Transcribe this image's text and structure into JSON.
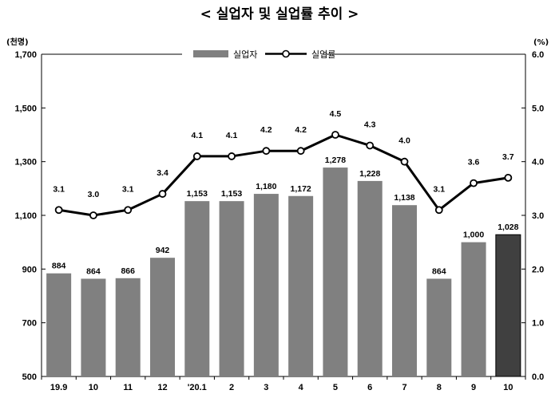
{
  "chart_data": {
    "type": "bar",
    "title": "< 실업자 및 실업률 추이 >",
    "left_unit": "(천명)",
    "right_unit": "(%)",
    "categories": [
      "19.9",
      "10",
      "11",
      "12",
      "'20.1",
      "2",
      "3",
      "4",
      "5",
      "6",
      "7",
      "8",
      "9",
      "10"
    ],
    "series": [
      {
        "name": "실업자",
        "type": "bar",
        "axis": "left",
        "color": "#808080",
        "highlight_color": "#404040",
        "highlight_index": 13,
        "values": [
          884,
          864,
          866,
          942,
          1153,
          1153,
          1180,
          1172,
          1278,
          1228,
          1138,
          864,
          1000,
          1028
        ],
        "labels": [
          "884",
          "864",
          "866",
          "942",
          "1,153",
          "1,153",
          "1,180",
          "1,172",
          "1,278",
          "1,228",
          "1,138",
          "864",
          "1,000",
          "1,028"
        ]
      },
      {
        "name": "실업률",
        "type": "line",
        "axis": "right",
        "color": "#000000",
        "values": [
          3.1,
          3.0,
          3.1,
          3.4,
          4.1,
          4.1,
          4.2,
          4.2,
          4.5,
          4.3,
          4.0,
          3.1,
          3.6,
          3.7
        ],
        "labels": [
          "3.1",
          "3.0",
          "3.1",
          "3.4",
          "4.1",
          "4.1",
          "4.2",
          "4.2",
          "4.5",
          "4.3",
          "4.0",
          "3.1",
          "3.6",
          "3.7"
        ]
      }
    ],
    "y_left": {
      "min": 500,
      "max": 1700,
      "ticks": [
        500,
        700,
        900,
        1100,
        1300,
        1500,
        1700
      ],
      "tick_labels": [
        "500",
        "700",
        "900",
        "1,100",
        "1,300",
        "1,500",
        "1,700"
      ]
    },
    "y_right": {
      "min": 0.0,
      "max": 6.0,
      "ticks": [
        0.0,
        1.0,
        2.0,
        3.0,
        4.0,
        5.0,
        6.0
      ],
      "tick_labels": [
        "0.0",
        "1.0",
        "2.0",
        "3.0",
        "4.0",
        "5.0",
        "6.0"
      ]
    },
    "grid": false,
    "legend_position": "top-center"
  }
}
